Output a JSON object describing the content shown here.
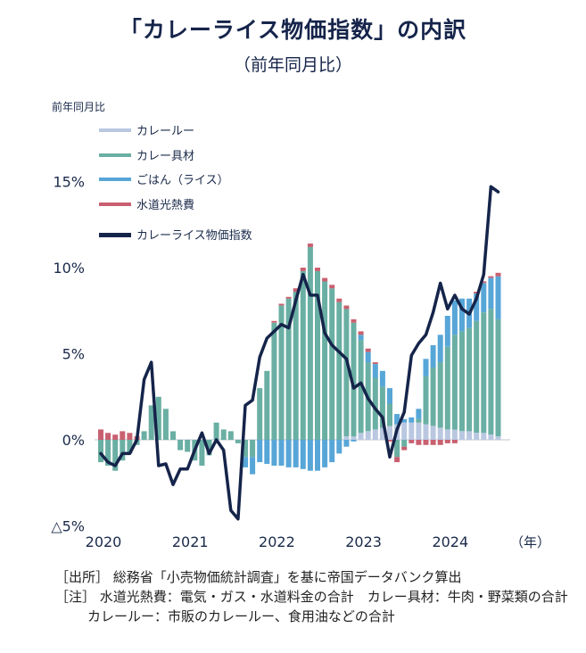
{
  "title": "「カレーライス物価指数」の内訳",
  "subtitle": "（前年同月比）",
  "notes": {
    "source": "［出所］ 総務省「小売物価統計調査」を基に帝国データバンク算出",
    "note1": "［注］ 水道光熱費：電気・ガス・水道料金の合計　カレー具材：牛肉・野菜類の合計",
    "note2": "カレールー：市販のカレールー、食用油などの合計"
  },
  "colors": {
    "roux": "#b9c7e1",
    "ingredients": "#6aafa3",
    "rice": "#57a6d8",
    "utilities": "#c96070",
    "index": "#15244a"
  },
  "chart_data": {
    "type": "bar",
    "stacked": true,
    "ylabel": "前年同月比",
    "xunit": "（年）",
    "ylim": [
      -5,
      15
    ],
    "yticks": [
      -5,
      0,
      5,
      10,
      15
    ],
    "ytick_labels": [
      "△5%",
      "0%",
      "5%",
      "10%",
      "15%"
    ],
    "xticks": [
      "2020",
      "2021",
      "2022",
      "2023",
      "2024"
    ],
    "legend_position": "top-left",
    "categories": [
      "2020-01",
      "2020-02",
      "2020-03",
      "2020-04",
      "2020-05",
      "2020-06",
      "2020-07",
      "2020-08",
      "2020-09",
      "2020-10",
      "2020-11",
      "2020-12",
      "2021-01",
      "2021-02",
      "2021-03",
      "2021-04",
      "2021-05",
      "2021-06",
      "2021-07",
      "2021-08",
      "2021-09",
      "2021-10",
      "2021-11",
      "2021-12",
      "2022-01",
      "2022-02",
      "2022-03",
      "2022-04",
      "2022-05",
      "2022-06",
      "2022-07",
      "2022-08",
      "2022-09",
      "2022-10",
      "2022-11",
      "2022-12",
      "2023-01",
      "2023-02",
      "2023-03",
      "2023-04",
      "2023-05",
      "2023-06",
      "2023-07",
      "2023-08",
      "2023-09",
      "2023-10",
      "2023-11",
      "2023-12",
      "2024-01",
      "2024-02",
      "2024-03",
      "2024-04",
      "2024-05",
      "2024-06",
      "2024-07",
      "2024-08"
    ],
    "series": [
      {
        "name": "カレールー",
        "key": "roux",
        "values": [
          0,
          0,
          0,
          0,
          0,
          0,
          0,
          0,
          0,
          0,
          0,
          0,
          0,
          0,
          0,
          0,
          0,
          0,
          0,
          0,
          0,
          0,
          0,
          0,
          0,
          0,
          0,
          0,
          0,
          0,
          0,
          0,
          0,
          0,
          0.2,
          0.2,
          0.4,
          0.5,
          0.6,
          0.7,
          0.8,
          0.9,
          1.0,
          1.0,
          1.0,
          0.9,
          0.8,
          0.7,
          0.6,
          0.6,
          0.5,
          0.5,
          0.4,
          0.4,
          0.3,
          0.2
        ]
      },
      {
        "name": "カレー具材",
        "key": "ingredients",
        "values": [
          -1.3,
          -1.5,
          -1.8,
          -1.2,
          -0.8,
          -0.3,
          0.5,
          2.0,
          2.5,
          1.8,
          0.5,
          -0.6,
          -0.7,
          -1.2,
          -1.5,
          -0.9,
          1.0,
          0.6,
          0.5,
          -0.2,
          -1.0,
          -1.0,
          3.0,
          4.0,
          6.8,
          7.8,
          8.2,
          8.6,
          9.8,
          11.2,
          9.8,
          9.2,
          8.8,
          8.0,
          7.4,
          6.6,
          5.4,
          4.0,
          3.0,
          2.4,
          1.3,
          -1.0,
          -0.4,
          0.0,
          0.2,
          2.8,
          3.4,
          3.8,
          4.8,
          5.5,
          5.8,
          6.0,
          6.5,
          7.0,
          7.3,
          6.8
        ]
      },
      {
        "name": "ごはん（ライス）",
        "key": "rice",
        "values": [
          0,
          0,
          0,
          0,
          0,
          0,
          0,
          0,
          0,
          0,
          0,
          0,
          0,
          0,
          0,
          0,
          0,
          0,
          0,
          0,
          -0.6,
          -1.0,
          -1.3,
          -1.4,
          -1.5,
          -1.5,
          -1.6,
          -1.6,
          -1.7,
          -1.8,
          -1.8,
          -1.6,
          -1.3,
          -0.8,
          -0.4,
          -0.1,
          0.3,
          0.6,
          0.8,
          0.9,
          0.9,
          0.6,
          0.2,
          0.3,
          0.6,
          1.0,
          1.3,
          1.6,
          1.8,
          2.0,
          1.9,
          1.7,
          1.6,
          1.7,
          1.8,
          2.5
        ]
      },
      {
        "name": "水道光熱費",
        "key": "utilities",
        "values": [
          0.6,
          0.4,
          0.3,
          0.5,
          0.4,
          0.2,
          0,
          0,
          0,
          0,
          0,
          0,
          0,
          0,
          0,
          0,
          0,
          0,
          0,
          0,
          0,
          0,
          0,
          0,
          0.1,
          0.1,
          0.1,
          0.2,
          0.2,
          0.2,
          0.2,
          0.2,
          0.2,
          0.2,
          0.2,
          0.2,
          0.2,
          0.2,
          0.1,
          0.0,
          -0.1,
          -0.3,
          -0.2,
          -0.2,
          -0.3,
          -0.3,
          -0.3,
          -0.3,
          -0.2,
          -0.2,
          0.0,
          0.0,
          0.1,
          0.1,
          0.1,
          0.2
        ]
      }
    ],
    "line": {
      "name": "カレーライス物価指数",
      "key": "index",
      "values": [
        -0.8,
        -1.3,
        -1.5,
        -0.8,
        -0.8,
        0.0,
        3.5,
        4.5,
        -1.5,
        -1.4,
        -2.6,
        -1.7,
        -1.7,
        -0.6,
        0.4,
        -0.8,
        0.0,
        -0.6,
        -4.1,
        -4.6,
        2.0,
        2.3,
        4.8,
        5.9,
        6.3,
        6.7,
        6.5,
        8.1,
        9.6,
        8.4,
        8.4,
        6.2,
        5.5,
        5.1,
        4.7,
        3.0,
        3.3,
        2.4,
        1.8,
        1.3,
        -1.0,
        0.6,
        1.6,
        4.9,
        5.6,
        6.1,
        7.4,
        9.1,
        7.6,
        8.4,
        7.6,
        7.3,
        8.2,
        9.6,
        14.7,
        14.4
      ]
    }
  }
}
